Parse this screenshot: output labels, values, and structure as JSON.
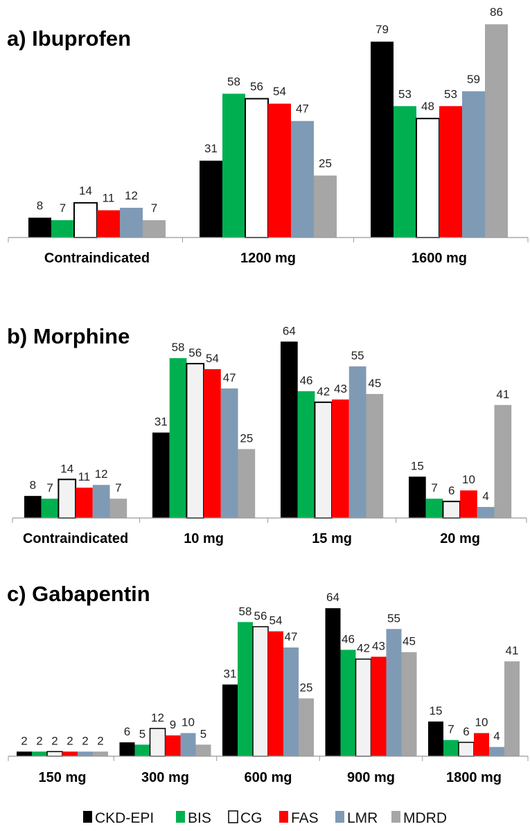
{
  "chart_data": [
    {
      "type": "bar",
      "title": "a) Ibuprofen",
      "categories": [
        "Contraindicated",
        "1200 mg",
        "1600 mg"
      ],
      "series": [
        {
          "name": "CKD-EPI",
          "values": [
            8,
            31,
            79
          ]
        },
        {
          "name": "BIS",
          "values": [
            7,
            58,
            53
          ]
        },
        {
          "name": "CG",
          "values": [
            14,
            56,
            48
          ]
        },
        {
          "name": "FAS",
          "values": [
            11,
            54,
            53
          ]
        },
        {
          "name": "LMR",
          "values": [
            12,
            47,
            59
          ]
        },
        {
          "name": "MDRD",
          "values": [
            7,
            25,
            86
          ]
        }
      ],
      "ylim": [
        0,
        86
      ],
      "grid": false,
      "legend": "bottom"
    },
    {
      "type": "bar",
      "title": "b) Morphine",
      "categories": [
        "Contraindicated",
        "10 mg",
        "15 mg",
        "20 mg"
      ],
      "series": [
        {
          "name": "CKD-EPI",
          "values": [
            8,
            31,
            64,
            15
          ]
        },
        {
          "name": "BIS",
          "values": [
            7,
            58,
            46,
            7
          ]
        },
        {
          "name": "CG",
          "values": [
            14,
            56,
            42,
            6
          ]
        },
        {
          "name": "FAS",
          "values": [
            11,
            54,
            43,
            10
          ]
        },
        {
          "name": "LMR",
          "values": [
            12,
            47,
            55,
            4
          ]
        },
        {
          "name": "MDRD",
          "values": [
            7,
            25,
            45,
            41
          ]
        }
      ],
      "ylim": [
        0,
        64
      ],
      "grid": false,
      "legend": "bottom"
    },
    {
      "type": "bar",
      "title": "c) Gabapentin",
      "categories": [
        "150 mg",
        "300 mg",
        "600 mg",
        "900 mg",
        "1800 mg"
      ],
      "series": [
        {
          "name": "CKD-EPI",
          "values": [
            2,
            6,
            31,
            64,
            15
          ]
        },
        {
          "name": "BIS",
          "values": [
            2,
            5,
            58,
            46,
            7
          ]
        },
        {
          "name": "CG",
          "values": [
            2,
            12,
            56,
            42,
            6
          ]
        },
        {
          "name": "FAS",
          "values": [
            2,
            9,
            54,
            43,
            10
          ]
        },
        {
          "name": "LMR",
          "values": [
            2,
            10,
            47,
            55,
            4
          ]
        },
        {
          "name": "MDRD",
          "values": [
            2,
            5,
            25,
            45,
            41
          ]
        }
      ],
      "ylim": [
        0,
        64
      ],
      "grid": false,
      "legend": "bottom"
    }
  ],
  "legend": [
    "CKD-EPI",
    "BIS",
    "CG",
    "FAS",
    "LMR",
    "MDRD"
  ],
  "colors": {
    "CKD-EPI": "#000000",
    "BIS": "#00b050",
    "CG": "#ffffff",
    "FAS": "#ff0000",
    "LMR": "#7f9ab5",
    "MDRD": "#a6a6a6"
  }
}
